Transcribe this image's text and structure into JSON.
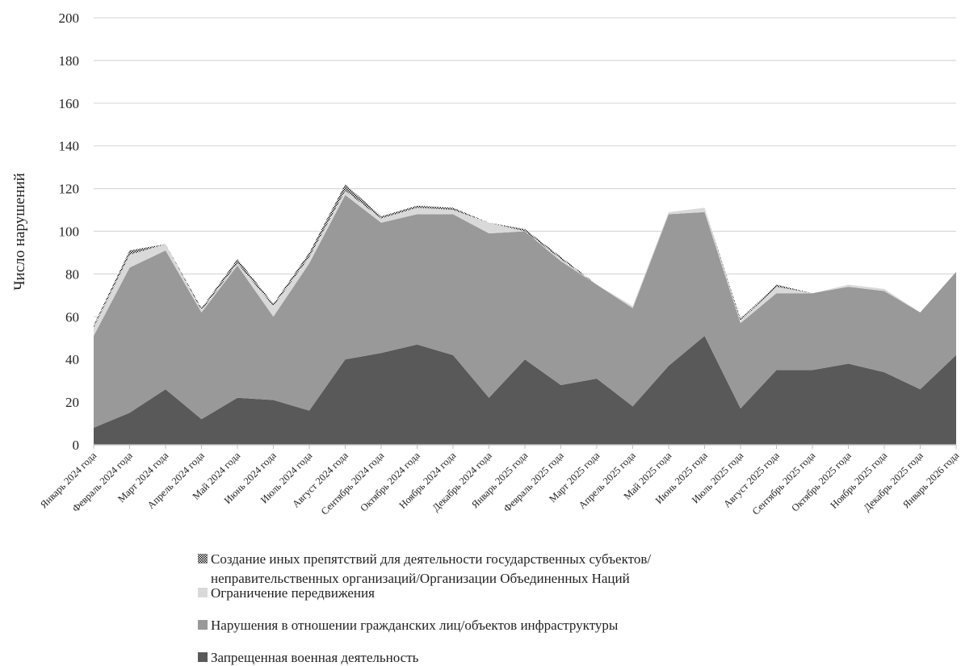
{
  "chart_data": {
    "type": "area",
    "stacked": true,
    "ylabel": "Число нарушений",
    "ylim": [
      0,
      200
    ],
    "yticks": [
      0,
      20,
      40,
      60,
      80,
      100,
      120,
      140,
      160,
      180,
      200
    ],
    "grid": true,
    "legend_position": "bottom",
    "categories": [
      "Январь 2024 года",
      "Февраль 2024 года",
      "Март 2024 года",
      "Апрель 2024 года",
      "Май 2024 года",
      "Июнь 2024 года",
      "Июль 2024 года",
      "Август 2024 года",
      "Сентябрь 2024 года",
      "Октябрь 2024 года",
      "Ноябрь 2024 года",
      "Декабрь 2024 года",
      "Январь 2025 года",
      "Февраль 2025 года",
      "Март 2025 года",
      "Апрель 2025 года",
      "Май 2025 года",
      "Июнь 2025 года",
      "Июль 2025 года",
      "Август 2025 года",
      "Сентябрь 2025 года",
      "Октябрь 2025 года",
      "Ноябрь 2025 года",
      "Декабрь 2025 года",
      "Январь 2026 года"
    ],
    "series": [
      {
        "name": "Запрещенная военная деятельность",
        "color": "#595959",
        "values": [
          8,
          15,
          26,
          12,
          22,
          21,
          16,
          40,
          43,
          47,
          42,
          22,
          40,
          28,
          31,
          18,
          37,
          51,
          17,
          35,
          35,
          38,
          34,
          26,
          42
        ]
      },
      {
        "name": "Нарушения в отношении гражданских лиц/объектов инфраструктуры",
        "color": "#999999",
        "values": [
          43,
          68,
          65,
          50,
          62,
          39,
          69,
          77,
          61,
          61,
          66,
          77,
          60,
          58,
          44,
          46,
          71,
          58,
          40,
          36,
          36,
          36,
          38,
          36,
          39
        ]
      },
      {
        "name": "Ограничение передвижения",
        "color": "#d9d9d9",
        "values": [
          4,
          6,
          3,
          1,
          1,
          5,
          3,
          2,
          2,
          3,
          2,
          5,
          0,
          1,
          0,
          1,
          1,
          2,
          1,
          3,
          0,
          1,
          1,
          0,
          0
        ]
      },
      {
        "name": "Создание иных препятствий для деятельности государственных субъектов/ неправительственных организаций/Организации Объединенных Наций",
        "color": "dotted",
        "values": [
          1,
          2,
          0,
          1,
          2,
          1,
          2,
          3,
          1,
          1,
          1,
          0,
          1,
          1,
          0,
          0,
          0,
          0,
          1,
          1,
          0,
          0,
          0,
          0,
          0
        ]
      }
    ]
  },
  "legend": {
    "items": [
      {
        "line1": "Создание иных препятствий для деятельности государственных субъектов/",
        "line2": "неправительственных организаций/Организации Объединенных Наций",
        "icon": "dotted-square-icon"
      },
      {
        "line1": "Ограничение передвижения",
        "icon": "light-gray-square-icon"
      },
      {
        "line1": "Нарушения в отношении гражданских лиц/объектов инфраструктуры",
        "icon": "medium-gray-square-icon"
      },
      {
        "line1": "Запрещенная военная деятельность",
        "icon": "dark-gray-square-icon"
      }
    ]
  }
}
